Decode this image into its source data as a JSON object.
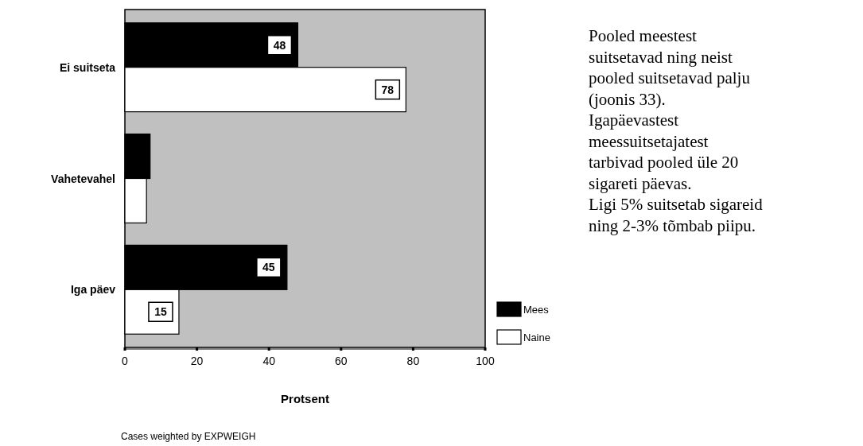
{
  "chart_data": {
    "type": "bar",
    "orientation": "horizontal",
    "xlabel": "Protsent",
    "categories": [
      "Ei suitseta",
      "Vahetevahel",
      "Iga päev"
    ],
    "series": [
      {
        "name": "Mees",
        "color": "#000000",
        "values": [
          48,
          7,
          45
        ],
        "value_labels": [
          "48",
          null,
          "45"
        ]
      },
      {
        "name": "Naine",
        "color": "#ffffff",
        "values": [
          78,
          6,
          15
        ],
        "value_labels": [
          "78",
          null,
          "15"
        ]
      }
    ],
    "xlim": [
      0,
      100
    ],
    "xticks": [
      0,
      20,
      40,
      60,
      80,
      100
    ],
    "legend": "bottom right",
    "annotations": [
      "Pooled meestest suitsetavad ning neist pooled suitsetavad palju (joonis 33).",
      "Igapäevastest meessuitsetajatest tarbivad pooled üle 20 sigareti päevas.",
      "Ligi 5% suitsetab sigareid ning 2-3% tõmbab piipu.",
      "Cases weighted by EXPWEIGH"
    ]
  }
}
